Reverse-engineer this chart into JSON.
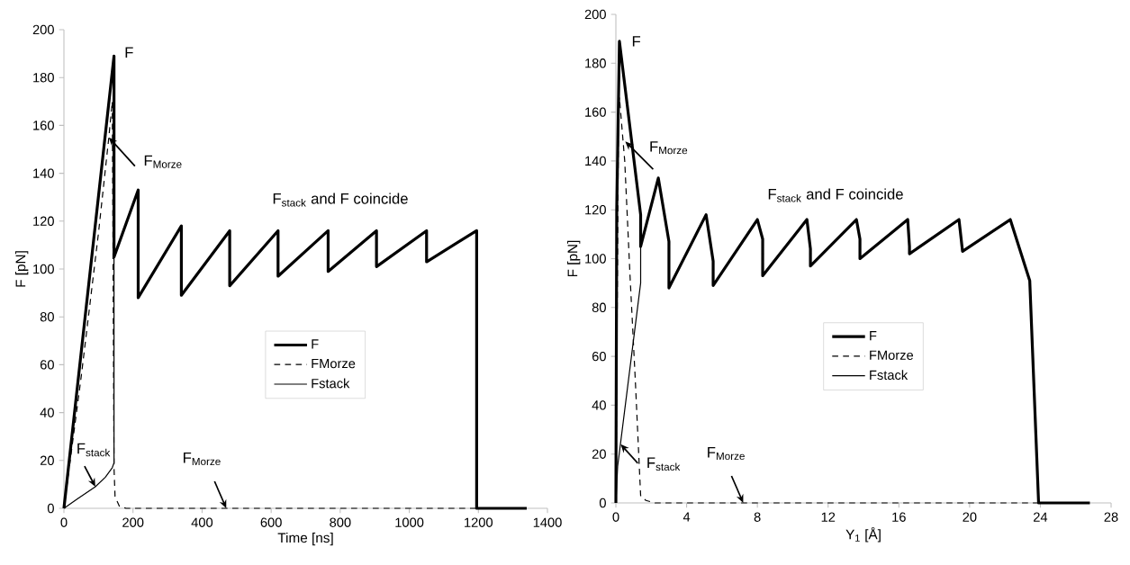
{
  "chart_data": [
    {
      "type": "line",
      "xlabel": "Time [ns]",
      "ylabel": "F [pN]",
      "xlim": [
        0,
        1400
      ],
      "xticks": [
        0,
        200,
        400,
        600,
        800,
        1000,
        1200,
        1400
      ],
      "ylim": [
        0,
        200
      ],
      "yticks": [
        0,
        20,
        40,
        60,
        80,
        100,
        120,
        140,
        160,
        180,
        200
      ],
      "legend": "center",
      "series": [
        {
          "name": "F",
          "color": "#000000",
          "line_style": "solid",
          "x": [
            0,
            145,
            145,
            215,
            215,
            340,
            340,
            480,
            480,
            620,
            620,
            765,
            765,
            905,
            905,
            1050,
            1050,
            1195,
            1195,
            1340
          ],
          "values": [
            0,
            189,
            105,
            133,
            88,
            118,
            89,
            116,
            93,
            116,
            97,
            116,
            99,
            116,
            101,
            116,
            103,
            116,
            0,
            0
          ]
        },
        {
          "name": "FMorze",
          "color": "#000000",
          "line_style": "dashed",
          "x": [
            0,
            50,
            100,
            130,
            140,
            145,
            148,
            160,
            180,
            1195
          ],
          "values": [
            0,
            55,
            115,
            155,
            170,
            17,
            5,
            1,
            0,
            0
          ]
        },
        {
          "name": "Fstack",
          "color": "#000000",
          "line_style": "solid",
          "x": [
            0,
            40,
            91,
            120,
            140,
            145,
            145
          ],
          "values": [
            0,
            4,
            9,
            13,
            17,
            19,
            105
          ]
        }
      ],
      "annotations": [
        {
          "text": "F",
          "x": 145,
          "y": 189
        },
        {
          "text": "F$_{Morze}$",
          "x": 130,
          "y": 155
        },
        {
          "text": "F$_{stack}$",
          "x": 91,
          "y": 9
        },
        {
          "text": "F$_{Morze}$",
          "x": 470,
          "y": 0
        },
        "F$_{stack}$ and F coincide"
      ]
    },
    {
      "type": "line",
      "xlabel": "Y$_{1}$ [Å]",
      "ylabel": "F [pN]",
      "xlim": [
        0,
        28
      ],
      "xticks": [
        0,
        4,
        8,
        12,
        16,
        20,
        24,
        28
      ],
      "ylim": [
        0,
        200
      ],
      "yticks": [
        0,
        20,
        40,
        60,
        80,
        100,
        120,
        140,
        160,
        180,
        200
      ],
      "legend": "center",
      "series": [
        {
          "name": "F",
          "color": "#000000",
          "line_style": "solid",
          "x": [
            0,
            0.05,
            0.2,
            1.4,
            1.4,
            2.4,
            3.0,
            3.0,
            5.1,
            5.5,
            5.5,
            8.0,
            8.3,
            8.3,
            10.8,
            11.0,
            11.0,
            13.6,
            13.8,
            13.8,
            16.5,
            16.6,
            16.6,
            19.4,
            19.6,
            22.3,
            23.4,
            23.9,
            26.8
          ],
          "values": [
            0,
            120,
            189,
            118,
            105,
            133,
            107,
            88,
            118,
            99,
            89,
            116,
            108,
            93,
            116,
            104,
            97,
            116,
            108,
            100,
            116,
            105,
            102,
            116,
            103,
            116,
            91,
            0,
            0
          ]
        },
        {
          "name": "FMorze",
          "color": "#000000",
          "line_style": "dashed",
          "x": [
            0,
            0.15,
            0.2,
            0.5,
            0.8,
            1.1,
            1.4,
            1.7,
            2.2,
            23.9
          ],
          "values": [
            0,
            160,
            166,
            140,
            93,
            50,
            3,
            1,
            0,
            0
          ]
        },
        {
          "name": "Fstack",
          "color": "#000000",
          "line_style": "solid",
          "x": [
            0,
            0.1,
            1.4,
            1.4
          ],
          "values": [
            0,
            15,
            90,
            105
          ]
        }
      ],
      "annotations": [
        {
          "text": "F",
          "x": 0.2,
          "y": 189
        },
        {
          "text": "F$_{Morze}$",
          "x": 0.53,
          "y": 148
        },
        {
          "text": "F$_{stack}$",
          "x": 0.27,
          "y": 24
        },
        {
          "text": "F$_{Morze}$",
          "x": 7.2,
          "y": 0
        },
        "F$_{stack}$ and F coincide"
      ]
    }
  ]
}
